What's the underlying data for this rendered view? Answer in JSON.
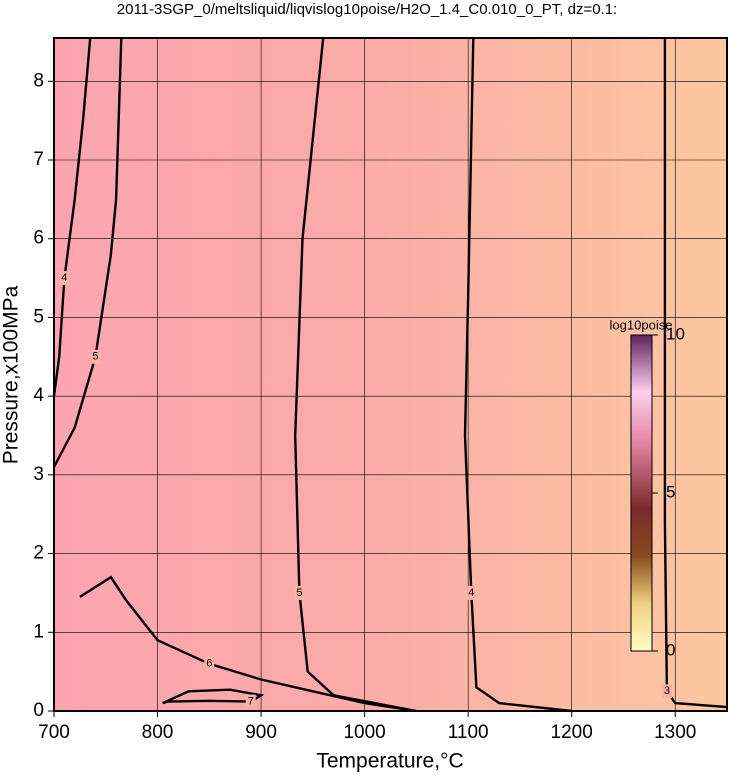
{
  "chart_data": {
    "type": "contour",
    "title": "2011-3SGP_0/meltsliquid/liqvislog10poise/H2O_1.4_C0.010_0_PT, dz=0.1:",
    "x_label": "Temperature,°C",
    "y_label": "Pressure,x100MPa",
    "xlim": [
      700,
      1350
    ],
    "ylim": [
      0,
      8.55
    ],
    "xticks": [
      700,
      800,
      900,
      1000,
      1100,
      1200,
      1300
    ],
    "yticks": [
      0,
      1,
      2,
      3,
      4,
      5,
      6,
      7,
      8
    ],
    "grid": true,
    "colorbar": {
      "label": "log10poise",
      "lim": [
        0,
        10
      ],
      "ticks": [
        0,
        5,
        10
      ]
    },
    "contours": [
      {
        "level": 3,
        "x": [
          1290,
          1290,
          1290,
          1292,
          1300,
          1350
        ],
        "y": [
          8.55,
          5.4,
          2.4,
          0.25,
          0.1,
          0.05
        ]
      },
      {
        "level": 4,
        "x": [
          1105,
          1100,
          1097,
          1103,
          1108,
          1130,
          1200
        ],
        "y": [
          8.55,
          5.3,
          3.5,
          1.5,
          0.3,
          0.1,
          0
        ]
      },
      {
        "level": 5,
        "x": [
          960,
          940,
          933,
          937,
          945,
          970,
          1050
        ],
        "y": [
          8.55,
          6.0,
          3.5,
          1.5,
          0.5,
          0.2,
          0
        ]
      },
      {
        "level": 5,
        "x": [
          765,
          760,
          755,
          740,
          720,
          700
        ],
        "y": [
          8.55,
          6.5,
          5.8,
          4.5,
          3.6,
          3.1
        ]
      },
      {
        "level": 4,
        "x": [
          735,
          728,
          720,
          710,
          705,
          700
        ],
        "y": [
          8.55,
          7.5,
          6.5,
          5.5,
          4.5,
          4.0
        ]
      },
      {
        "level": 6,
        "x": [
          725,
          755,
          770,
          800,
          850,
          900,
          950,
          1000,
          1050
        ],
        "y": [
          1.45,
          1.7,
          1.4,
          0.9,
          0.6,
          0.4,
          0.25,
          0.1,
          0
        ]
      },
      {
        "level": 7,
        "x": [
          805,
          830,
          870,
          900,
          890,
          850,
          810,
          805
        ],
        "y": [
          0.1,
          0.25,
          0.27,
          0.2,
          0.12,
          0.13,
          0.12,
          0.1
        ]
      }
    ]
  }
}
